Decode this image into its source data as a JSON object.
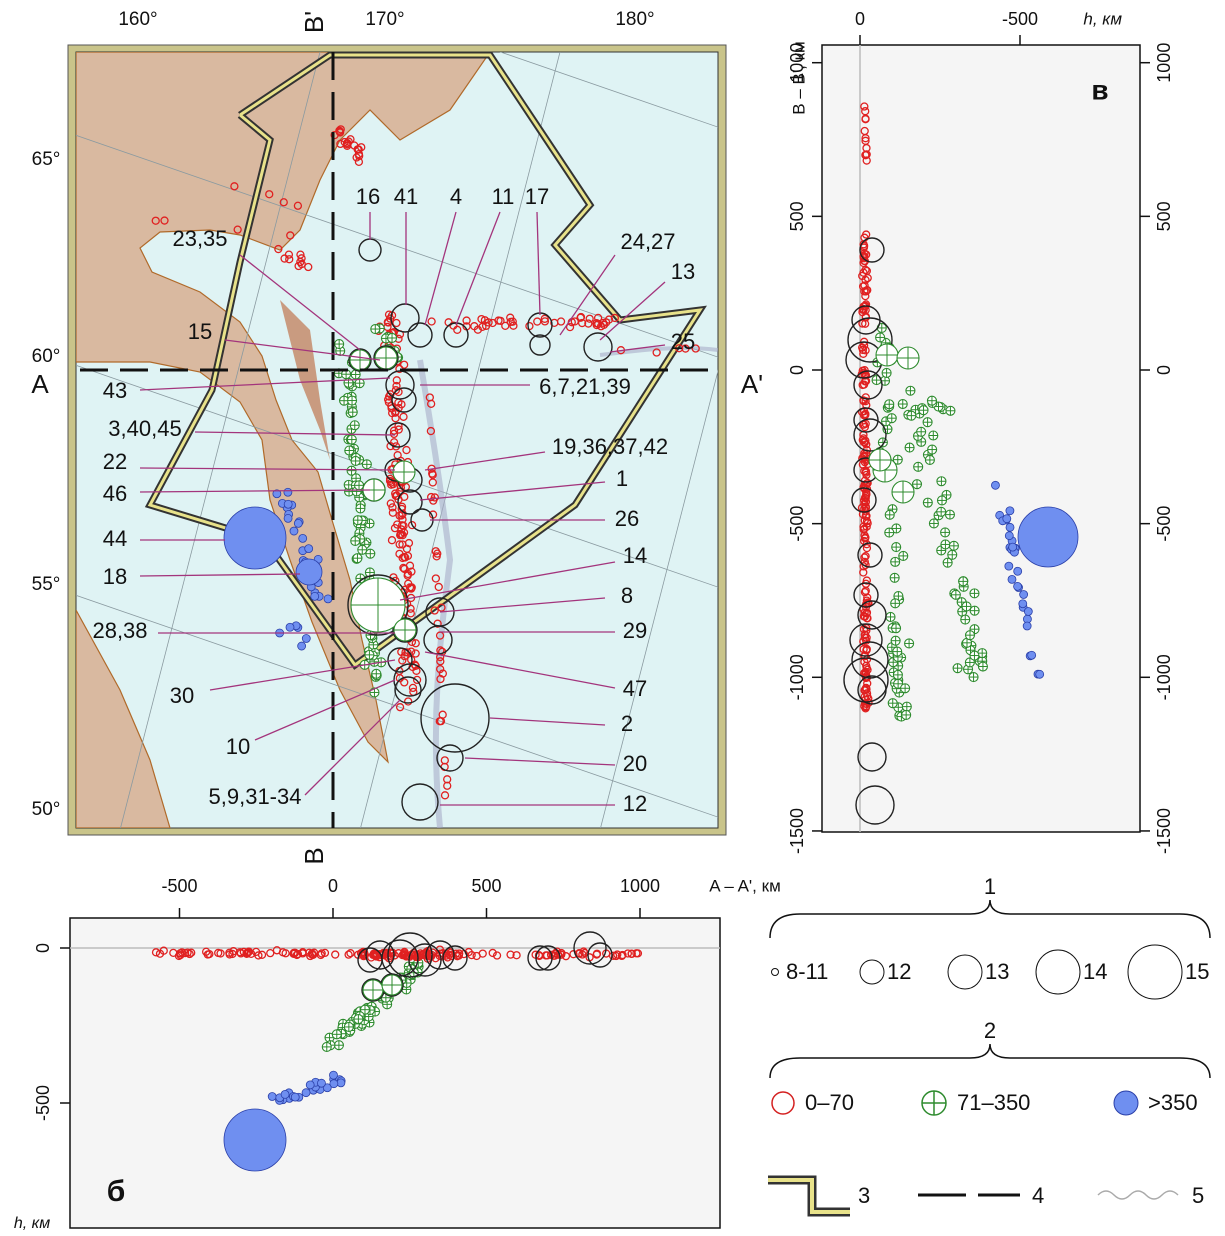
{
  "map": {
    "lon_labels": [
      "160°",
      "170°",
      "180°"
    ],
    "lat_labels": [
      "65°",
      "60°",
      "55°",
      "50°"
    ],
    "profile_labels": {
      "A": "A",
      "A_prime": "A'",
      "B": "B",
      "B_prime": "B'"
    },
    "event_labels": [
      "16",
      "41",
      "4",
      "11",
      "17",
      "24,27",
      "13",
      "23,35",
      "15",
      "25",
      "43",
      "6,7,21,39",
      "3,40,45",
      "19,36,37,42",
      "22",
      "1",
      "46",
      "26",
      "44",
      "14",
      "18",
      "8",
      "28,38",
      "29",
      "30",
      "47",
      "10",
      "2",
      "5,9,31-34",
      "20",
      "12"
    ]
  },
  "panel_v": {
    "letter": "в",
    "x_axis_label": "h, км",
    "y_axis_label": "B – B', км",
    "xticks": [
      0,
      -500
    ],
    "yticks": [
      1000,
      500,
      0,
      -500,
      -1000,
      -1500
    ]
  },
  "panel_b": {
    "letter": "б",
    "x_axis_label": "A – A', км",
    "y_axis_label": "h, км",
    "xticks": [
      -500,
      0,
      500,
      1000
    ],
    "yticks": [
      0,
      -500
    ]
  },
  "legend": {
    "group1": {
      "label": "1",
      "items": [
        "8-11",
        "12",
        "13",
        "14",
        "15"
      ]
    },
    "group2": {
      "label": "2",
      "items": [
        "0–70",
        "71–350",
        ">350"
      ]
    },
    "symbols": [
      "3",
      "4",
      "5"
    ]
  }
}
